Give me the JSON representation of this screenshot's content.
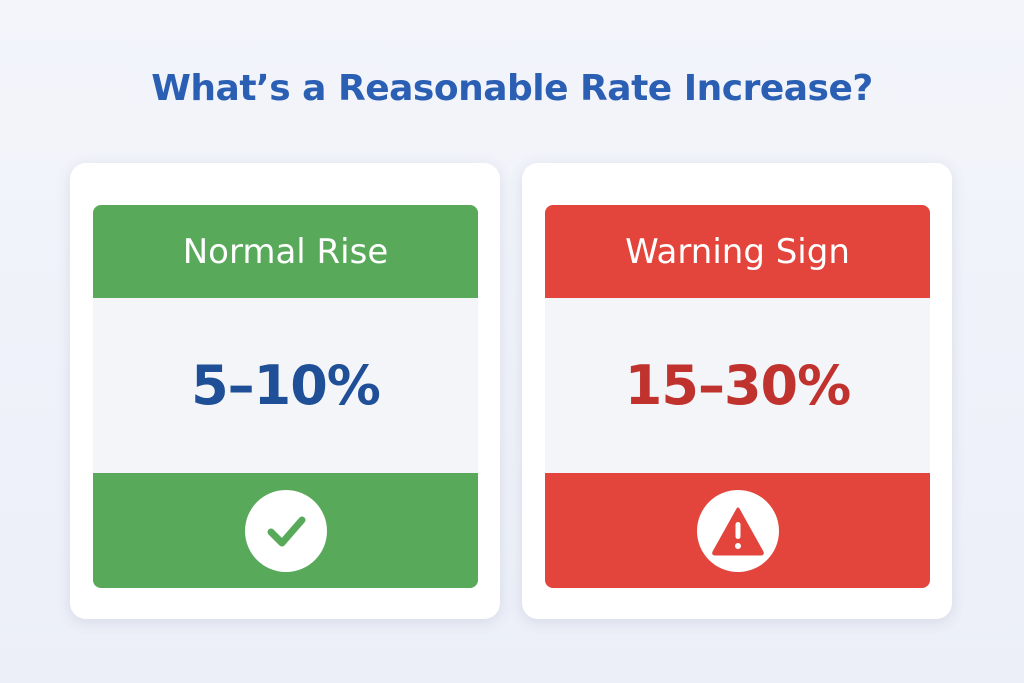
{
  "title": "What’s a Reasonable Rate Increase?",
  "cards": [
    {
      "header": "Normal Rise",
      "value": "5–10%",
      "icon": "check-icon",
      "color": "#58a95a",
      "value_color": "#1f4f97"
    },
    {
      "header": "Warning Sign",
      "value": "15–30%",
      "icon": "warning-icon",
      "color": "#e3443b",
      "value_color": "#c0322d"
    }
  ],
  "colors": {
    "title": "#2b5fb4",
    "background": "#f3f5fb"
  }
}
